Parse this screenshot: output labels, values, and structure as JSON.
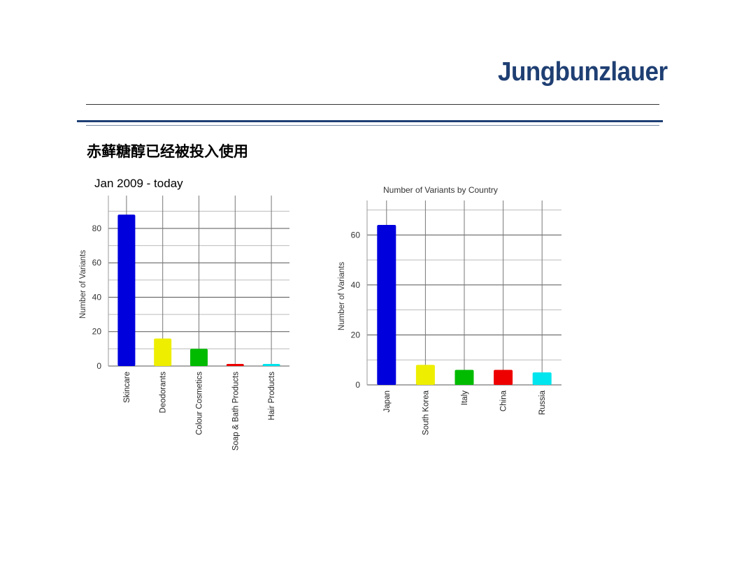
{
  "logo": {
    "text": "Jungbunzlauer",
    "color": "#1f3f73"
  },
  "heading": "赤藓糖醇已经被投入使用",
  "chart_data": [
    {
      "type": "bar",
      "title": "Jan 2009 - today",
      "xlabel": "",
      "ylabel": "Number of Variants",
      "categories": [
        "Skincare",
        "Deodorants",
        "Colour Cosmetics",
        "Soap & Bath Products",
        "Hair Products"
      ],
      "values": [
        88,
        16,
        10,
        1,
        1
      ],
      "colors": [
        "#0000dd",
        "#eeee00",
        "#00bb00",
        "#ee0000",
        "#00e5ee"
      ],
      "yticks": [
        0,
        20,
        40,
        60,
        80
      ],
      "ylim": [
        0,
        95
      ],
      "grid": true
    },
    {
      "type": "bar",
      "title": "Number of Variants by Country",
      "xlabel": "",
      "ylabel": "Number of Variants",
      "categories": [
        "Japan",
        "South Korea",
        "Italy",
        "China",
        "Russia"
      ],
      "values": [
        64,
        8,
        6,
        6,
        5
      ],
      "colors": [
        "#0000dd",
        "#eeee00",
        "#00bb00",
        "#ee0000",
        "#00e5ee"
      ],
      "yticks": [
        0,
        20,
        40,
        60
      ],
      "ylim": [
        0,
        71
      ],
      "grid": true
    }
  ]
}
